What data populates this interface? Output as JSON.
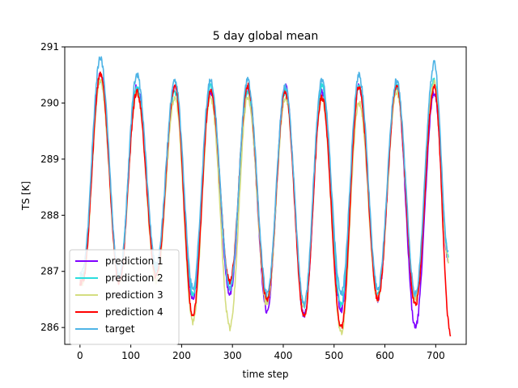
{
  "chart_data": {
    "type": "line",
    "title": "5 day global mean",
    "xlabel": "time step",
    "ylabel": "TS [K]",
    "xlim": [
      -30,
      760
    ],
    "ylim": [
      285.7,
      291.0
    ],
    "xticks": [
      0,
      100,
      200,
      300,
      400,
      500,
      600,
      700
    ],
    "yticks": [
      286,
      287,
      288,
      289,
      290,
      291
    ],
    "grid": false,
    "legend_position": "lower-left",
    "x_end": 729,
    "series": [
      {
        "name": "prediction 1",
        "color": "#7f00ff",
        "peaks": [
          [
            40,
            290.5
          ],
          [
            112,
            290.3
          ],
          [
            187,
            290.3
          ],
          [
            257,
            290.2
          ],
          [
            330,
            290.2
          ],
          [
            404,
            290.3
          ],
          [
            476,
            290.2
          ],
          [
            549,
            290.3
          ],
          [
            623,
            290.3
          ],
          [
            697,
            290.2
          ]
        ],
        "troughs": [
          [
            5,
            286.9
          ],
          [
            77,
            286.9
          ],
          [
            150,
            287.0
          ],
          [
            222,
            286.5
          ],
          [
            295,
            286.6
          ],
          [
            368,
            286.3
          ],
          [
            441,
            286.2
          ],
          [
            514,
            286.3
          ],
          [
            586,
            286.5
          ],
          [
            660,
            286.0
          ],
          [
            725,
            287.2
          ]
        ]
      },
      {
        "name": "prediction 2",
        "color": "#2adddd",
        "peaks": [
          [
            40,
            290.4
          ],
          [
            112,
            290.3
          ],
          [
            187,
            290.2
          ],
          [
            257,
            290.3
          ],
          [
            330,
            290.2
          ],
          [
            404,
            290.2
          ],
          [
            476,
            290.3
          ],
          [
            549,
            290.3
          ],
          [
            623,
            290.3
          ],
          [
            697,
            290.4
          ]
        ],
        "troughs": [
          [
            5,
            286.9
          ],
          [
            77,
            286.9
          ],
          [
            150,
            287.0
          ],
          [
            222,
            286.6
          ],
          [
            295,
            286.7
          ],
          [
            368,
            286.5
          ],
          [
            441,
            286.4
          ],
          [
            514,
            286.4
          ],
          [
            586,
            286.6
          ],
          [
            660,
            286.5
          ],
          [
            725,
            287.3
          ]
        ]
      },
      {
        "name": "prediction 3",
        "color": "#d4dd80",
        "peaks": [
          [
            40,
            290.4
          ],
          [
            112,
            290.2
          ],
          [
            187,
            290.1
          ],
          [
            257,
            290.1
          ],
          [
            330,
            290.1
          ],
          [
            404,
            290.1
          ],
          [
            476,
            290.1
          ],
          [
            549,
            290.0
          ],
          [
            623,
            290.2
          ],
          [
            697,
            290.4
          ]
        ],
        "troughs": [
          [
            5,
            286.8
          ],
          [
            77,
            286.8
          ],
          [
            150,
            286.8
          ],
          [
            222,
            286.1
          ],
          [
            295,
            286.0
          ],
          [
            368,
            286.4
          ],
          [
            441,
            286.4
          ],
          [
            514,
            285.9
          ],
          [
            586,
            286.5
          ],
          [
            660,
            286.5
          ],
          [
            725,
            287.2
          ]
        ]
      },
      {
        "name": "prediction 4",
        "color": "#ff0000",
        "peaks": [
          [
            40,
            290.5
          ],
          [
            112,
            290.2
          ],
          [
            187,
            290.3
          ],
          [
            257,
            290.2
          ],
          [
            330,
            290.3
          ],
          [
            404,
            290.2
          ],
          [
            476,
            290.1
          ],
          [
            549,
            290.3
          ],
          [
            623,
            290.3
          ],
          [
            697,
            290.3
          ]
        ],
        "troughs": [
          [
            5,
            286.8
          ],
          [
            77,
            286.8
          ],
          [
            150,
            286.9
          ],
          [
            222,
            286.2
          ],
          [
            295,
            286.8
          ],
          [
            368,
            286.5
          ],
          [
            441,
            286.2
          ],
          [
            514,
            286.0
          ],
          [
            586,
            286.5
          ],
          [
            660,
            286.4
          ],
          [
            729,
            285.9
          ]
        ]
      },
      {
        "name": "target",
        "color": "#4fb4e6",
        "peaks": [
          [
            40,
            290.8
          ],
          [
            112,
            290.5
          ],
          [
            187,
            290.4
          ],
          [
            257,
            290.4
          ],
          [
            330,
            290.4
          ],
          [
            404,
            290.3
          ],
          [
            476,
            290.4
          ],
          [
            549,
            290.5
          ],
          [
            623,
            290.4
          ],
          [
            697,
            290.7
          ]
        ],
        "troughs": [
          [
            5,
            287.0
          ],
          [
            77,
            286.9
          ],
          [
            150,
            287.1
          ],
          [
            222,
            286.7
          ],
          [
            295,
            286.7
          ],
          [
            368,
            286.6
          ],
          [
            441,
            286.4
          ],
          [
            514,
            286.6
          ],
          [
            586,
            286.7
          ],
          [
            660,
            286.6
          ],
          [
            725,
            287.3
          ]
        ]
      }
    ]
  }
}
